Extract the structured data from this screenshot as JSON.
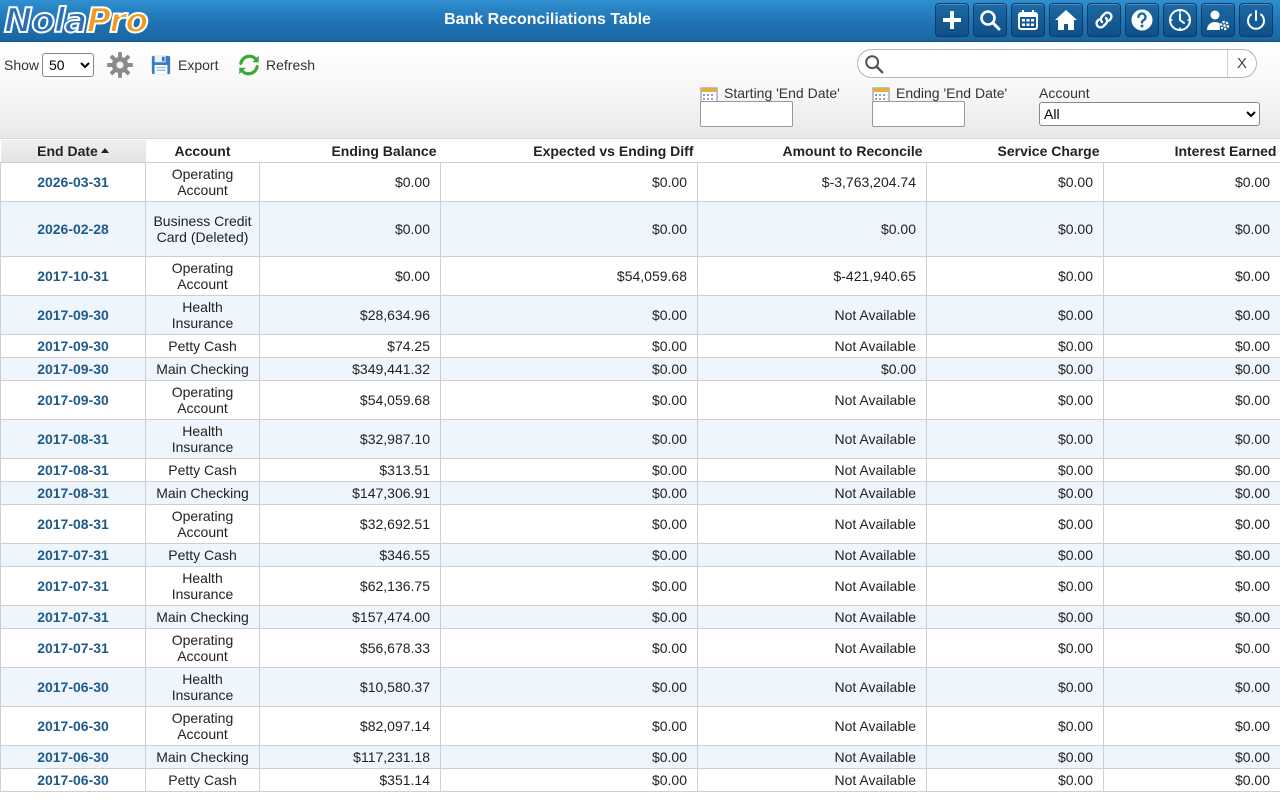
{
  "header": {
    "logo_part1": "Nola",
    "logo_part2": "Pro",
    "title": "Bank Reconciliations Table",
    "buttons": [
      "add-icon",
      "search-icon",
      "calendar-icon",
      "home-icon",
      "link-icon",
      "help-icon",
      "clock-icon",
      "user-settings-icon",
      "power-icon"
    ]
  },
  "toolbar": {
    "show_label": "Show",
    "show_value": "50",
    "export_label": "Export",
    "refresh_label": "Refresh",
    "search_placeholder": "",
    "clear_label": "X",
    "start_date_label": "Starting 'End Date'",
    "end_date_label": "Ending 'End Date'",
    "account_label": "Account",
    "account_value": "All"
  },
  "table": {
    "columns": [
      "End Date",
      "Account",
      "Ending Balance",
      "Expected vs Ending Diff",
      "Amount to Reconcile",
      "Service Charge",
      "Interest Earned"
    ],
    "rows": [
      [
        "2026-03-31",
        "Operating Account",
        "$0.00",
        "$0.00",
        "$-3,763,204.74",
        "$0.00",
        "$0.00"
      ],
      [
        "2026-02-28",
        "Business Credit Card (Deleted)",
        "$0.00",
        "$0.00",
        "$0.00",
        "$0.00",
        "$0.00"
      ],
      [
        "2017-10-31",
        "Operating Account",
        "$0.00",
        "$54,059.68",
        "$-421,940.65",
        "$0.00",
        "$0.00"
      ],
      [
        "2017-09-30",
        "Health Insurance",
        "$28,634.96",
        "$0.00",
        "Not Available",
        "$0.00",
        "$0.00"
      ],
      [
        "2017-09-30",
        "Petty Cash",
        "$74.25",
        "$0.00",
        "Not Available",
        "$0.00",
        "$0.00"
      ],
      [
        "2017-09-30",
        "Main Checking",
        "$349,441.32",
        "$0.00",
        "$0.00",
        "$0.00",
        "$0.00"
      ],
      [
        "2017-09-30",
        "Operating Account",
        "$54,059.68",
        "$0.00",
        "Not Available",
        "$0.00",
        "$0.00"
      ],
      [
        "2017-08-31",
        "Health Insurance",
        "$32,987.10",
        "$0.00",
        "Not Available",
        "$0.00",
        "$0.00"
      ],
      [
        "2017-08-31",
        "Petty Cash",
        "$313.51",
        "$0.00",
        "Not Available",
        "$0.00",
        "$0.00"
      ],
      [
        "2017-08-31",
        "Main Checking",
        "$147,306.91",
        "$0.00",
        "Not Available",
        "$0.00",
        "$0.00"
      ],
      [
        "2017-08-31",
        "Operating Account",
        "$32,692.51",
        "$0.00",
        "Not Available",
        "$0.00",
        "$0.00"
      ],
      [
        "2017-07-31",
        "Petty Cash",
        "$346.55",
        "$0.00",
        "Not Available",
        "$0.00",
        "$0.00"
      ],
      [
        "2017-07-31",
        "Health Insurance",
        "$62,136.75",
        "$0.00",
        "Not Available",
        "$0.00",
        "$0.00"
      ],
      [
        "2017-07-31",
        "Main Checking",
        "$157,474.00",
        "$0.00",
        "Not Available",
        "$0.00",
        "$0.00"
      ],
      [
        "2017-07-31",
        "Operating Account",
        "$56,678.33",
        "$0.00",
        "Not Available",
        "$0.00",
        "$0.00"
      ],
      [
        "2017-06-30",
        "Health Insurance",
        "$10,580.37",
        "$0.00",
        "Not Available",
        "$0.00",
        "$0.00"
      ],
      [
        "2017-06-30",
        "Operating Account",
        "$82,097.14",
        "$0.00",
        "Not Available",
        "$0.00",
        "$0.00"
      ],
      [
        "2017-06-30",
        "Main Checking",
        "$117,231.18",
        "$0.00",
        "Not Available",
        "$0.00",
        "$0.00"
      ],
      [
        "2017-06-30",
        "Petty Cash",
        "$351.14",
        "$0.00",
        "Not Available",
        "$0.00",
        "$0.00"
      ]
    ]
  },
  "colors": {
    "topbar": "#1f73b3",
    "date_link": "#1f5a8a",
    "row_alt": "#eef5fc",
    "logo_blue": "#2a6fb8",
    "logo_orange": "#f29a1c"
  }
}
